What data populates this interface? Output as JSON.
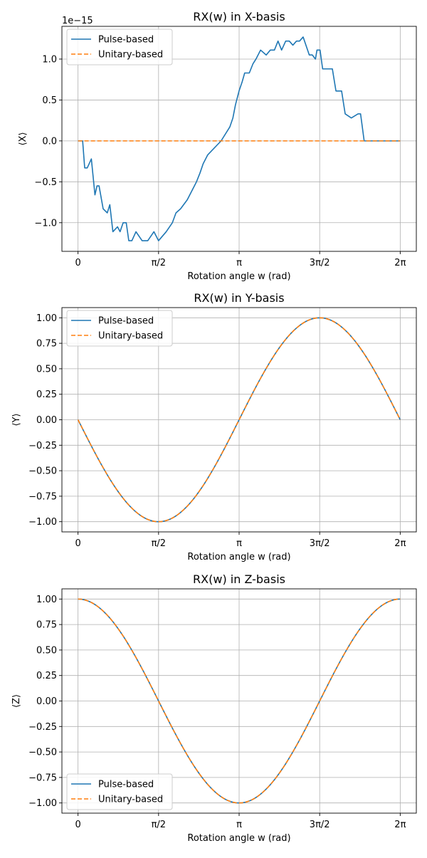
{
  "colors": {
    "pulse": "#1f77b4",
    "unitary": "#ff7f0e",
    "grid": "#b0b0b0",
    "legend_border": "#cccccc"
  },
  "chart_data": [
    {
      "type": "line",
      "title": "RX(w) in X-basis",
      "xlabel": "Rotation angle w (rad)",
      "ylabel": "⟨X⟩",
      "y_offset_label": "1e−15",
      "xlim": [
        -0.31416,
        6.59734
      ],
      "ylim": [
        -1.35,
        1.4
      ],
      "xticks": [
        0,
        1.5708,
        3.14159,
        4.71239,
        6.28319
      ],
      "xticklabels": [
        "0",
        "π/2",
        "π",
        "3π/2",
        "2π"
      ],
      "yticks": [
        -1.0,
        -0.5,
        0.0,
        0.5,
        1.0
      ],
      "yticklabels": [
        "−1.0",
        "−0.5",
        "0.0",
        "0.5",
        "1.0"
      ],
      "grid": true,
      "legend_position": "upper left",
      "series": [
        {
          "name": "Pulse-based",
          "style": "solid",
          "x": [
            0,
            0.09,
            0.13,
            0.18,
            0.26,
            0.33,
            0.37,
            0.41,
            0.49,
            0.57,
            0.62,
            0.68,
            0.77,
            0.82,
            0.88,
            0.94,
            0.99,
            1.05,
            1.13,
            1.25,
            1.36,
            1.48,
            1.57,
            1.72,
            1.84,
            1.91,
            2.0,
            2.13,
            2.22,
            2.31,
            2.38,
            2.44,
            2.53,
            2.79,
            2.96,
            3.02,
            3.07,
            3.14,
            3.2,
            3.25,
            3.34,
            3.41,
            3.47,
            3.56,
            3.67,
            3.75,
            3.83,
            3.9,
            3.97,
            4.05,
            4.12,
            4.19,
            4.26,
            4.32,
            4.39,
            4.51,
            4.57,
            4.63,
            4.66,
            4.72,
            4.77,
            4.84,
            4.89,
            4.96,
            5.03,
            5.08,
            5.14,
            5.21,
            5.33,
            5.46,
            5.51,
            5.58,
            5.71,
            5.78,
            5.84,
            5.91,
            6.0,
            6.1,
            6.28
          ],
          "y": [
            0,
            0,
            -0.33,
            -0.33,
            -0.22,
            -0.66,
            -0.55,
            -0.55,
            -0.83,
            -0.88,
            -0.78,
            -1.11,
            -1.05,
            -1.11,
            -1.0,
            -1.0,
            -1.22,
            -1.22,
            -1.11,
            -1.22,
            -1.22,
            -1.11,
            -1.22,
            -1.11,
            -1.0,
            -0.88,
            -0.83,
            -0.72,
            -0.61,
            -0.5,
            -0.39,
            -0.28,
            -0.17,
            0.0,
            0.17,
            0.28,
            0.44,
            0.61,
            0.72,
            0.83,
            0.83,
            0.94,
            1.0,
            1.11,
            1.05,
            1.11,
            1.11,
            1.22,
            1.11,
            1.22,
            1.22,
            1.17,
            1.22,
            1.22,
            1.27,
            1.05,
            1.05,
            1.0,
            1.11,
            1.11,
            0.88,
            0.88,
            0.88,
            0.88,
            0.61,
            0.61,
            0.61,
            0.33,
            0.28,
            0.33,
            0.33,
            0.0,
            0.0,
            0.0,
            0.0,
            0.0,
            0.0,
            0.0,
            0.0
          ]
        },
        {
          "name": "Unitary-based",
          "style": "dashed",
          "fn": "zero",
          "x": [
            0,
            6.28319
          ],
          "y": [
            0,
            0
          ]
        }
      ]
    },
    {
      "type": "line",
      "title": "RX(w) in Y-basis",
      "xlabel": "Rotation angle w (rad)",
      "ylabel": "⟨Y⟩",
      "y_offset_label": "",
      "xlim": [
        -0.31416,
        6.59734
      ],
      "ylim": [
        -1.1,
        1.1
      ],
      "xticks": [
        0,
        1.5708,
        3.14159,
        4.71239,
        6.28319
      ],
      "xticklabels": [
        "0",
        "π/2",
        "π",
        "3π/2",
        "2π"
      ],
      "yticks": [
        -1.0,
        -0.75,
        -0.5,
        -0.25,
        0.0,
        0.25,
        0.5,
        0.75,
        1.0
      ],
      "yticklabels": [
        "−1.00",
        "−0.75",
        "−0.50",
        "−0.25",
        "0.00",
        "0.25",
        "0.50",
        "0.75",
        "1.00"
      ],
      "grid": true,
      "legend_position": "upper left",
      "series": [
        {
          "name": "Pulse-based",
          "style": "solid",
          "fn": "-sin"
        },
        {
          "name": "Unitary-based",
          "style": "dashed",
          "fn": "-sin"
        }
      ]
    },
    {
      "type": "line",
      "title": "RX(w) in Z-basis",
      "xlabel": "Rotation angle w (rad)",
      "ylabel": "⟨Z⟩",
      "y_offset_label": "",
      "xlim": [
        -0.31416,
        6.59734
      ],
      "ylim": [
        -1.1,
        1.1
      ],
      "xticks": [
        0,
        1.5708,
        3.14159,
        4.71239,
        6.28319
      ],
      "xticklabels": [
        "0",
        "π/2",
        "π",
        "3π/2",
        "2π"
      ],
      "yticks": [
        -1.0,
        -0.75,
        -0.5,
        -0.25,
        0.0,
        0.25,
        0.5,
        0.75,
        1.0
      ],
      "yticklabels": [
        "−1.00",
        "−0.75",
        "−0.50",
        "−0.25",
        "0.00",
        "0.25",
        "0.50",
        "0.75",
        "1.00"
      ],
      "grid": true,
      "legend_position": "lower left",
      "series": [
        {
          "name": "Pulse-based",
          "style": "solid",
          "fn": "cos"
        },
        {
          "name": "Unitary-based",
          "style": "dashed",
          "fn": "cos"
        }
      ]
    }
  ]
}
